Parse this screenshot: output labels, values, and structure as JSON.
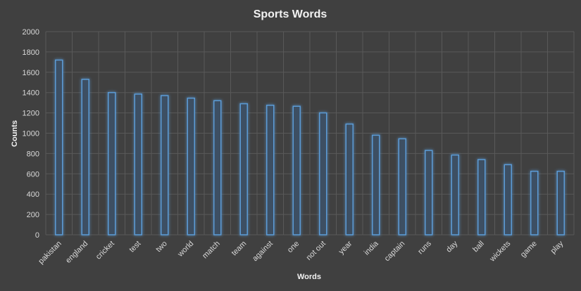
{
  "chart_data": {
    "type": "bar",
    "title": "Sports Words",
    "xlabel": "Words",
    "ylabel": "Counts",
    "ylim": [
      0,
      2000
    ],
    "yticks": [
      0,
      200,
      400,
      600,
      800,
      1000,
      1200,
      1400,
      1600,
      1800,
      2000
    ],
    "grid": true,
    "legend": "none",
    "categories": [
      "pakistan",
      "england",
      "cricket",
      "test",
      "two",
      "world",
      "match",
      "team",
      "against",
      "one",
      "not out",
      "year",
      "india",
      "captain",
      "runs",
      "day",
      "ball",
      "wickets",
      "game",
      "play"
    ],
    "values": [
      1720,
      1530,
      1400,
      1385,
      1370,
      1345,
      1320,
      1290,
      1275,
      1265,
      1200,
      1090,
      980,
      945,
      830,
      785,
      740,
      690,
      625,
      625
    ],
    "colors": {
      "background": "#404040",
      "bar_fill": "#3d4f63",
      "bar_stroke": "#5b9bd5",
      "grid": "#595959",
      "text": "#d9d9d9"
    }
  }
}
